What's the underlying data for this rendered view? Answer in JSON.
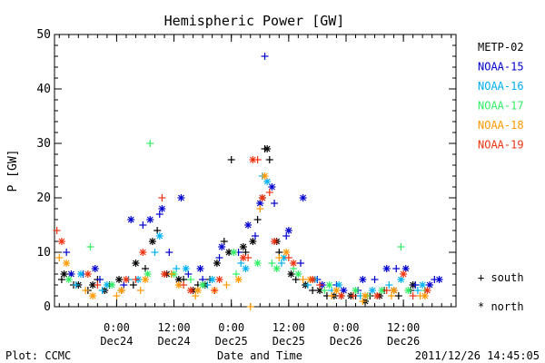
{
  "chart_data": {
    "type": "scatter",
    "title": "Hemispheric Power [GW]",
    "ylabel": "P [GW]",
    "xlabel": "Date and Time",
    "ylim": [
      0,
      50
    ],
    "yticks": [
      0,
      10,
      20,
      30,
      40,
      50
    ],
    "xlim": [
      "2011-12-23T11:00",
      "2011-12-26T23:00"
    ],
    "xticks": [
      {
        "t": "2011-12-24T00:00",
        "line1": "0:00",
        "line2": "Dec24"
      },
      {
        "t": "2011-12-24T12:00",
        "line1": "12:00",
        "line2": "Dec24"
      },
      {
        "t": "2011-12-25T00:00",
        "line1": "0:00",
        "line2": "Dec25"
      },
      {
        "t": "2011-12-25T12:00",
        "line1": "12:00",
        "line2": "Dec25"
      },
      {
        "t": "2011-12-26T00:00",
        "line1": "0:00",
        "line2": "Dec26"
      },
      {
        "t": "2011-12-26T12:00",
        "line1": "12:00",
        "line2": "Dec26"
      }
    ],
    "grid": false,
    "legend_position": "right",
    "series": [
      {
        "name": "METP-02",
        "color": "#000000",
        "south": [
          [
            "2011-12-23T12:30",
            5
          ],
          [
            "2011-12-23T15:00",
            4
          ],
          [
            "2011-12-23T18:00",
            3
          ],
          [
            "2011-12-23T20:00",
            5
          ],
          [
            "2011-12-23T22:30",
            4
          ],
          [
            "2011-12-24T01:00",
            3
          ],
          [
            "2011-12-24T03:30",
            4
          ],
          [
            "2011-12-24T06:00",
            7
          ],
          [
            "2011-12-24T08:30",
            14
          ],
          [
            "2011-12-24T11:30",
            6
          ],
          [
            "2011-12-24T14:00",
            5
          ],
          [
            "2011-12-24T17:00",
            4
          ],
          [
            "2011-12-24T19:30",
            5
          ],
          [
            "2011-12-24T22:30",
            12
          ],
          [
            "2011-12-25T00:00",
            27
          ],
          [
            "2011-12-25T03:00",
            10
          ],
          [
            "2011-12-25T05:30",
            16
          ],
          [
            "2011-12-25T07:00",
            29
          ],
          [
            "2011-12-25T08:00",
            27
          ],
          [
            "2011-12-25T10:00",
            10
          ],
          [
            "2011-12-25T13:30",
            5
          ],
          [
            "2011-12-25T17:00",
            3
          ],
          [
            "2011-12-25T20:00",
            2
          ],
          [
            "2011-12-25T23:00",
            2
          ],
          [
            "2011-12-26T02:00",
            2
          ],
          [
            "2011-12-26T05:00",
            2
          ],
          [
            "2011-12-26T08:00",
            3
          ],
          [
            "2011-12-26T11:00",
            2
          ],
          [
            "2011-12-26T13:30",
            3
          ]
        ],
        "north": [
          [
            "2011-12-23T13:00",
            6
          ],
          [
            "2011-12-23T16:00",
            4
          ],
          [
            "2011-12-23T19:00",
            4
          ],
          [
            "2011-12-23T21:30",
            3
          ],
          [
            "2011-12-24T00:30",
            5
          ],
          [
            "2011-12-24T04:00",
            8
          ],
          [
            "2011-12-24T07:30",
            12
          ],
          [
            "2011-12-24T10:30",
            6
          ],
          [
            "2011-12-24T13:00",
            5
          ],
          [
            "2011-12-24T16:00",
            3
          ],
          [
            "2011-12-24T18:30",
            4
          ],
          [
            "2011-12-24T21:00",
            8
          ],
          [
            "2011-12-24T23:30",
            10
          ],
          [
            "2011-12-25T02:30",
            11
          ],
          [
            "2011-12-25T04:30",
            12
          ],
          [
            "2011-12-25T06:30",
            20
          ],
          [
            "2011-12-25T07:30",
            29
          ],
          [
            "2011-12-25T09:30",
            12
          ],
          [
            "2011-12-25T12:30",
            6
          ],
          [
            "2011-12-25T15:30",
            4
          ],
          [
            "2011-12-25T18:30",
            3
          ],
          [
            "2011-12-25T21:30",
            2
          ],
          [
            "2011-12-26T01:00",
            2
          ],
          [
            "2011-12-26T04:00",
            1
          ],
          [
            "2011-12-26T07:00",
            2
          ],
          [
            "2011-12-26T10:00",
            3
          ],
          [
            "2011-12-26T14:00",
            4
          ]
        ]
      },
      {
        "name": "NOAA-15",
        "color": "#0000cc",
        "south": [
          [
            "2011-12-23T13:30",
            10
          ],
          [
            "2011-12-23T17:00",
            6
          ],
          [
            "2011-12-23T20:30",
            5
          ],
          [
            "2011-12-24T01:30",
            4
          ],
          [
            "2011-12-24T05:30",
            15
          ],
          [
            "2011-12-24T09:00",
            17
          ],
          [
            "2011-12-24T11:00",
            10
          ],
          [
            "2011-12-24T15:00",
            6
          ],
          [
            "2011-12-24T18:00",
            5
          ],
          [
            "2011-12-24T21:30",
            9
          ],
          [
            "2011-12-25T01:30",
            10
          ],
          [
            "2011-12-25T05:00",
            13
          ],
          [
            "2011-12-25T07:00",
            46
          ],
          [
            "2011-12-25T09:00",
            19
          ],
          [
            "2011-12-25T11:30",
            13
          ],
          [
            "2011-12-25T14:30",
            8
          ],
          [
            "2011-12-25T18:00",
            5
          ],
          [
            "2011-12-25T22:00",
            4
          ],
          [
            "2011-12-26T02:30",
            3
          ],
          [
            "2011-12-26T06:00",
            5
          ],
          [
            "2011-12-26T10:30",
            7
          ],
          [
            "2011-12-26T14:30",
            4
          ],
          [
            "2011-12-26T18:30",
            5
          ]
        ],
        "north": [
          [
            "2011-12-23T14:30",
            6
          ],
          [
            "2011-12-23T19:30",
            7
          ],
          [
            "2011-12-24T03:00",
            16
          ],
          [
            "2011-12-24T07:00",
            16
          ],
          [
            "2011-12-24T09:30",
            18
          ],
          [
            "2011-12-24T13:30",
            20
          ],
          [
            "2011-12-24T17:30",
            7
          ],
          [
            "2011-12-24T22:00",
            11
          ],
          [
            "2011-12-25T03:30",
            15
          ],
          [
            "2011-12-25T06:00",
            19
          ],
          [
            "2011-12-25T08:30",
            22
          ],
          [
            "2011-12-25T12:00",
            14
          ],
          [
            "2011-12-25T15:00",
            20
          ],
          [
            "2011-12-25T19:00",
            4
          ],
          [
            "2011-12-25T23:30",
            3
          ],
          [
            "2011-12-26T03:30",
            5
          ],
          [
            "2011-12-26T08:30",
            7
          ],
          [
            "2011-12-26T12:30",
            7
          ],
          [
            "2011-12-26T17:30",
            4
          ],
          [
            "2011-12-26T19:30",
            5
          ]
        ]
      },
      {
        "name": "NOAA-16",
        "color": "#00b0f0",
        "south": [
          [
            "2011-12-23T15:30",
            4
          ],
          [
            "2011-12-23T21:00",
            3
          ],
          [
            "2011-12-24T02:30",
            5
          ],
          [
            "2011-12-24T08:00",
            10
          ],
          [
            "2011-12-24T12:30",
            7
          ],
          [
            "2011-12-24T19:00",
            4
          ],
          [
            "2011-12-25T02:00",
            8
          ],
          [
            "2011-12-25T06:30",
            24
          ],
          [
            "2011-12-25T10:30",
            8
          ],
          [
            "2011-12-25T16:00",
            4
          ],
          [
            "2011-12-25T21:00",
            3
          ],
          [
            "2011-12-26T03:00",
            2
          ],
          [
            "2011-12-26T09:00",
            4
          ],
          [
            "2011-12-26T15:00",
            3
          ]
        ],
        "north": [
          [
            "2011-12-23T16:30",
            6
          ],
          [
            "2011-12-23T22:00",
            4
          ],
          [
            "2011-12-24T04:30",
            5
          ],
          [
            "2011-12-24T09:00",
            13
          ],
          [
            "2011-12-24T14:30",
            7
          ],
          [
            "2011-12-24T20:00",
            5
          ],
          [
            "2011-12-25T03:00",
            7
          ],
          [
            "2011-12-25T07:30",
            23
          ],
          [
            "2011-12-25T11:00",
            9
          ],
          [
            "2011-12-25T17:30",
            5
          ],
          [
            "2011-12-25T22:30",
            4
          ],
          [
            "2011-12-26T05:30",
            3
          ],
          [
            "2011-12-26T11:30",
            5
          ],
          [
            "2011-12-26T16:00",
            4
          ]
        ]
      },
      {
        "name": "NOAA-17",
        "color": "#33ee66",
        "south": [
          [
            "2011-12-23T18:30",
            11
          ],
          [
            "2011-12-24T07:00",
            30
          ],
          [
            "2011-12-24T15:30",
            5
          ],
          [
            "2011-12-25T01:00",
            6
          ],
          [
            "2011-12-25T08:30",
            8
          ],
          [
            "2011-12-25T13:00",
            7
          ],
          [
            "2011-12-25T19:30",
            3
          ],
          [
            "2011-12-26T04:30",
            2
          ],
          [
            "2011-12-26T11:30",
            11
          ],
          [
            "2011-12-26T16:30",
            3
          ]
        ],
        "north": [
          [
            "2011-12-23T14:00",
            5
          ],
          [
            "2011-12-23T23:00",
            4
          ],
          [
            "2011-12-24T06:30",
            6
          ],
          [
            "2011-12-24T12:00",
            6
          ],
          [
            "2011-12-24T18:00",
            4
          ],
          [
            "2011-12-25T00:30",
            10
          ],
          [
            "2011-12-25T05:30",
            8
          ],
          [
            "2011-12-25T09:30",
            7
          ],
          [
            "2011-12-25T14:00",
            6
          ],
          [
            "2011-12-25T20:30",
            4
          ],
          [
            "2011-12-26T02:00",
            3
          ],
          [
            "2011-12-26T07:30",
            3
          ],
          [
            "2011-12-26T13:00",
            3
          ]
        ]
      },
      {
        "name": "NOAA-18",
        "color": "#ff9900",
        "south": [
          [
            "2011-12-23T12:00",
            9
          ],
          [
            "2011-12-23T17:30",
            3
          ],
          [
            "2011-12-24T00:00",
            2
          ],
          [
            "2011-12-24T05:00",
            3
          ],
          [
            "2011-12-24T11:30",
            6
          ],
          [
            "2011-12-24T16:30",
            2
          ],
          [
            "2011-12-24T23:00",
            4
          ],
          [
            "2011-12-25T04:00",
            0
          ],
          [
            "2011-12-25T06:00",
            18
          ],
          [
            "2011-12-25T10:00",
            9
          ],
          [
            "2011-12-25T15:00",
            5
          ],
          [
            "2011-12-25T21:00",
            2
          ],
          [
            "2011-12-26T03:30",
            1
          ],
          [
            "2011-12-26T09:30",
            2
          ],
          [
            "2011-12-26T15:30",
            2
          ]
        ],
        "north": [
          [
            "2011-12-23T13:30",
            8
          ],
          [
            "2011-12-23T19:00",
            2
          ],
          [
            "2011-12-24T01:00",
            3
          ],
          [
            "2011-12-24T06:00",
            5
          ],
          [
            "2011-12-24T13:00",
            4
          ],
          [
            "2011-12-24T17:00",
            3
          ],
          [
            "2011-12-24T20:30",
            3
          ],
          [
            "2011-12-25T01:30",
            5
          ],
          [
            "2011-12-25T07:00",
            24
          ],
          [
            "2011-12-25T11:30",
            10
          ],
          [
            "2011-12-25T16:30",
            5
          ],
          [
            "2011-12-25T22:00",
            3
          ],
          [
            "2011-12-26T04:00",
            2
          ],
          [
            "2011-12-26T10:00",
            3
          ],
          [
            "2011-12-26T16:30",
            2
          ]
        ]
      },
      {
        "name": "NOAA-19",
        "color": "#ee3311",
        "south": [
          [
            "2011-12-23T11:30",
            14
          ],
          [
            "2011-12-23T20:00",
            4
          ],
          [
            "2011-12-24T04:00",
            5
          ],
          [
            "2011-12-24T09:30",
            20
          ],
          [
            "2011-12-24T14:00",
            4
          ],
          [
            "2011-12-24T20:30",
            3
          ],
          [
            "2011-12-25T03:30",
            9
          ],
          [
            "2011-12-25T05:30",
            27
          ],
          [
            "2011-12-25T08:00",
            21
          ],
          [
            "2011-12-25T12:00",
            9
          ],
          [
            "2011-12-25T18:30",
            4
          ],
          [
            "2011-12-26T01:30",
            2
          ],
          [
            "2011-12-26T08:30",
            3
          ],
          [
            "2011-12-26T14:00",
            2
          ]
        ],
        "north": [
          [
            "2011-12-23T12:30",
            12
          ],
          [
            "2011-12-23T18:00",
            6
          ],
          [
            "2011-12-24T02:00",
            5
          ],
          [
            "2011-12-24T05:30",
            10
          ],
          [
            "2011-12-24T10:00",
            6
          ],
          [
            "2011-12-24T15:30",
            3
          ],
          [
            "2011-12-24T21:30",
            5
          ],
          [
            "2011-12-25T02:30",
            9
          ],
          [
            "2011-12-25T04:30",
            27
          ],
          [
            "2011-12-25T06:30",
            20
          ],
          [
            "2011-12-25T09:00",
            12
          ],
          [
            "2011-12-25T13:00",
            8
          ],
          [
            "2011-12-25T17:00",
            5
          ],
          [
            "2011-12-25T23:00",
            2
          ],
          [
            "2011-12-26T06:30",
            2
          ],
          [
            "2011-12-26T12:00",
            6
          ],
          [
            "2011-12-26T17:00",
            3
          ]
        ]
      }
    ],
    "markers": {
      "south": "+ south",
      "north": "* north"
    }
  },
  "footer": {
    "left": "Plot: CCMC",
    "center": "Date and Time",
    "right": "2011/12/26 14:45:05"
  }
}
